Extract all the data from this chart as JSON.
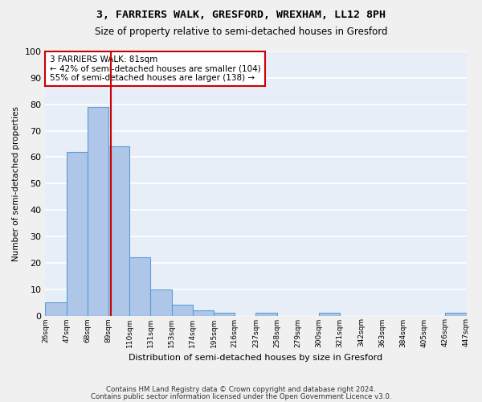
{
  "title1": "3, FARRIERS WALK, GRESFORD, WREXHAM, LL12 8PH",
  "title2": "Size of property relative to semi-detached houses in Gresford",
  "xlabel": "Distribution of semi-detached houses by size in Gresford",
  "ylabel": "Number of semi-detached properties",
  "bin_labels": [
    "26sqm",
    "47sqm",
    "68sqm",
    "89sqm",
    "110sqm",
    "131sqm",
    "153sqm",
    "174sqm",
    "195sqm",
    "216sqm",
    "237sqm",
    "258sqm",
    "279sqm",
    "300sqm",
    "321sqm",
    "342sqm",
    "363sqm",
    "384sqm",
    "405sqm",
    "426sqm",
    "447sqm"
  ],
  "bar_heights": [
    5,
    62,
    79,
    64,
    22,
    10,
    4,
    2,
    1,
    0,
    1,
    0,
    0,
    1,
    0,
    0,
    0,
    0,
    0,
    1
  ],
  "bar_color": "#aec6e8",
  "bar_edge_color": "#5a9fd4",
  "vline_x": 2.62,
  "vline_color": "#cc0000",
  "annotation_text": "3 FARRIERS WALK: 81sqm\n← 42% of semi-detached houses are smaller (104)\n55% of semi-detached houses are larger (138) →",
  "annotation_box_color": "#cc0000",
  "ylim": [
    0,
    100
  ],
  "yticks": [
    0,
    10,
    20,
    30,
    40,
    50,
    60,
    70,
    80,
    90,
    100
  ],
  "footer1": "Contains HM Land Registry data © Crown copyright and database right 2024.",
  "footer2": "Contains public sector information licensed under the Open Government Licence v3.0.",
  "bg_color": "#e8eef8",
  "grid_color": "#ffffff"
}
